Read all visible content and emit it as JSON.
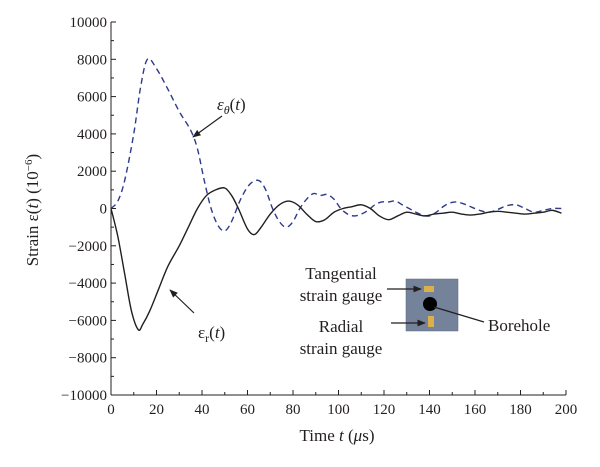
{
  "chart_data": {
    "type": "line",
    "xlabel": "Time t (μs)",
    "ylabel": "Strain ε(t) (10⁻⁶)",
    "xlim": [
      0,
      200
    ],
    "ylim": [
      -10000,
      10000
    ],
    "xticks": [
      0,
      20,
      40,
      60,
      80,
      100,
      120,
      140,
      160,
      180,
      200
    ],
    "yticks": [
      -10000,
      -8000,
      -6000,
      -4000,
      -2000,
      0,
      2000,
      4000,
      6000,
      8000,
      10000
    ],
    "grid": false,
    "legend": "none",
    "series": [
      {
        "name": "εθ(t)",
        "color": "#2e3a8c",
        "dash": "dashed",
        "x": [
          0,
          3,
          6,
          10,
          13,
          16,
          20,
          25,
          30,
          35,
          38,
          41,
          44,
          47,
          50,
          53,
          57,
          61,
          65,
          68,
          71,
          74,
          77,
          80,
          83,
          86,
          89,
          92,
          95,
          98,
          101,
          104,
          107,
          110,
          113,
          116,
          119,
          122,
          125,
          128,
          131,
          134,
          137,
          140,
          143,
          146,
          149,
          152,
          155,
          158,
          162,
          166,
          170,
          174,
          178,
          182,
          186,
          190,
          194,
          198
        ],
        "y": [
          0,
          400,
          1500,
          4000,
          6500,
          8000,
          7500,
          6400,
          5200,
          4200,
          3200,
          1500,
          0,
          -900,
          -1200,
          -700,
          500,
          1300,
          1500,
          1000,
          0,
          -700,
          -1000,
          -700,
          0,
          500,
          800,
          700,
          750,
          500,
          0,
          -300,
          -400,
          -300,
          -100,
          200,
          350,
          350,
          400,
          200,
          0,
          -200,
          -350,
          -400,
          -200,
          100,
          300,
          350,
          250,
          100,
          -100,
          -200,
          -50,
          150,
          200,
          0,
          -200,
          -100,
          0,
          0
        ]
      },
      {
        "name": "εr(t)",
        "color": "#231f20",
        "dash": "solid",
        "x": [
          0,
          3,
          6,
          9,
          12,
          14,
          17,
          21,
          25,
          30,
          34,
          38,
          42,
          46,
          50,
          53,
          56,
          60,
          63,
          66,
          70,
          74,
          78,
          82,
          86,
          90,
          94,
          98,
          102,
          106,
          110,
          114,
          118,
          122,
          126,
          130,
          134,
          138,
          142,
          146,
          150,
          154,
          158,
          162,
          166,
          170,
          174,
          178,
          182,
          186,
          190,
          194,
          198
        ],
        "y": [
          0,
          -1500,
          -3500,
          -5500,
          -6500,
          -6200,
          -5500,
          -4300,
          -3100,
          -2000,
          -1000,
          0,
          700,
          1000,
          1100,
          700,
          0,
          -1100,
          -1400,
          -1000,
          -300,
          200,
          400,
          200,
          -300,
          -700,
          -600,
          -200,
          0,
          100,
          200,
          0,
          -400,
          -600,
          -400,
          -200,
          -300,
          -400,
          -300,
          -250,
          -200,
          -300,
          -350,
          -300,
          -200,
          -150,
          -200,
          -250,
          -300,
          -250,
          -200,
          -100,
          -250
        ]
      }
    ],
    "annotations": {
      "eps_theta": "εθ(t)",
      "eps_r": "εr(t)",
      "tangential": "Tangential strain gauge",
      "radial": "Radial strain gauge",
      "borehole": "Borehole"
    }
  }
}
